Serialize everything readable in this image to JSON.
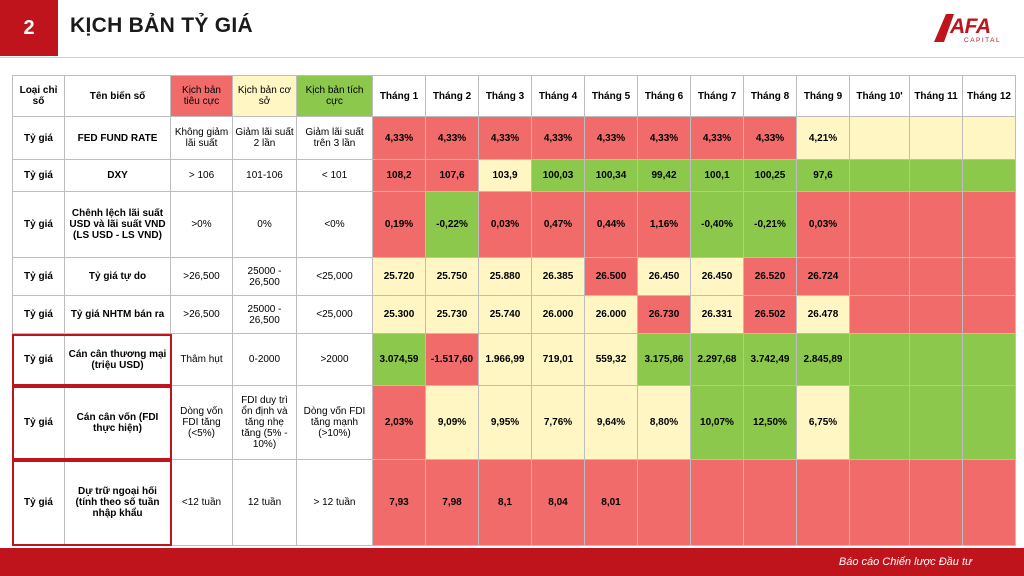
{
  "header": {
    "section_number": "2",
    "title": "KỊCH BẢN TỶ GIÁ",
    "logo_text": "AFA",
    "logo_sub": "CAPITAL"
  },
  "footer": {
    "text": "Báo cáo Chiến lược Đầu tư"
  },
  "table": {
    "headers": {
      "category": "Loại chỉ số",
      "name": "Tên biến số",
      "negative": "Kịch bản tiêu cực",
      "base": "Kịch bản cơ sở",
      "positive": "Kịch bản tích cực",
      "months": [
        "Tháng 1",
        "Tháng 2",
        "Tháng 3",
        "Tháng 4",
        "Tháng 5",
        "Tháng 6",
        "Tháng 7",
        "Tháng 8",
        "Tháng 9",
        "Tháng 10'",
        "Tháng 11",
        "Tháng 12"
      ]
    },
    "colors": {
      "red": "#f26b6b",
      "green": "#8cc84b",
      "yellow": "#fff6c4",
      "brand": "#c0141c"
    },
    "rows": [
      {
        "category": "Tỷ giá",
        "name": "FED FUND RATE",
        "negative": "Không giảm lãi suất",
        "base": "Giảm lãi suất 2 lần",
        "positive": "Giảm lãi suất trên 3 lần",
        "values": [
          "4,33%",
          "4,33%",
          "4,33%",
          "4,33%",
          "4,33%",
          "4,33%",
          "4,33%",
          "4,33%",
          "4,21%",
          "",
          "",
          ""
        ],
        "colors": [
          "r",
          "r",
          "r",
          "r",
          "r",
          "r",
          "r",
          "r",
          "y",
          "y",
          "y",
          "y"
        ]
      },
      {
        "category": "Tỷ giá",
        "name": "DXY",
        "negative": "> 106",
        "base": "101-106",
        "positive": "< 101",
        "values": [
          "108,2",
          "107,6",
          "103,9",
          "100,03",
          "100,34",
          "99,42",
          "100,1",
          "100,25",
          "97,6",
          "",
          "",
          ""
        ],
        "colors": [
          "r",
          "r",
          "y",
          "g",
          "g",
          "g",
          "g",
          "g",
          "g",
          "g",
          "g",
          "g"
        ]
      },
      {
        "category": "Tỷ giá",
        "name": "Chênh lệch lãi suất USD và lãi suất VND (LS USD - LS VND)",
        "negative": ">0%",
        "base": "0%",
        "positive": "<0%",
        "values": [
          "0,19%",
          "-0,22%",
          "0,03%",
          "0,47%",
          "0,44%",
          "1,16%",
          "-0,40%",
          "-0,21%",
          "0,03%",
          "",
          "",
          ""
        ],
        "colors": [
          "r",
          "g",
          "r",
          "r",
          "r",
          "r",
          "g",
          "g",
          "r",
          "r",
          "r",
          "r"
        ]
      },
      {
        "category": "Tỷ giá",
        "name": "Tỷ giá tự do",
        "negative": ">26,500",
        "base": "25000 - 26,500",
        "positive": "<25,000",
        "values": [
          "25.720",
          "25.750",
          "25.880",
          "26.385",
          "26.500",
          "26.450",
          "26.450",
          "26.520",
          "26.724",
          "",
          "",
          ""
        ],
        "colors": [
          "y",
          "y",
          "y",
          "y",
          "r",
          "y",
          "y",
          "r",
          "r",
          "r",
          "r",
          "r"
        ]
      },
      {
        "category": "Tỷ giá",
        "name": "Tỷ giá NHTM bán ra",
        "negative": ">26,500",
        "base": "25000 - 26,500",
        "positive": "<25,000",
        "values": [
          "25.300",
          "25.730",
          "25.740",
          "26.000",
          "26.000",
          "26.730",
          "26.331",
          "26.502",
          "26.478",
          "",
          "",
          ""
        ],
        "colors": [
          "y",
          "y",
          "y",
          "y",
          "y",
          "r",
          "y",
          "r",
          "y",
          "r",
          "r",
          "r"
        ]
      },
      {
        "category": "Tỷ giá",
        "name": "Cán cân thương mại (triệu USD)",
        "negative": "Thâm hụt",
        "base": "0-2000",
        "positive": ">2000",
        "values": [
          "3.074,59",
          "-1.517,60",
          "1.966,99",
          "719,01",
          "559,32",
          "3.175,86",
          "2.297,68",
          "3.742,49",
          "2.845,89",
          "",
          "",
          ""
        ],
        "colors": [
          "g",
          "r",
          "y",
          "y",
          "y",
          "g",
          "g",
          "g",
          "g",
          "g",
          "g",
          "g"
        ]
      },
      {
        "category": "Tỷ giá",
        "name": "Cán cân vốn (FDI thực hiện)",
        "negative": "Dòng vốn FDI tăng (<5%)",
        "base": "FDI duy trì ổn định và tăng nhẹ tăng (5% - 10%)",
        "positive": "Dòng vốn FDI tăng mạnh (>10%)",
        "values": [
          "2,03%",
          "9,09%",
          "9,95%",
          "7,76%",
          "9,64%",
          "8,80%",
          "10,07%",
          "12,50%",
          "6,75%",
          "",
          "",
          ""
        ],
        "colors": [
          "r",
          "y",
          "y",
          "y",
          "y",
          "y",
          "g",
          "g",
          "y",
          "g",
          "g",
          "g"
        ]
      },
      {
        "category": "Tỷ giá",
        "name": "Dự trữ ngoại hối (tính theo số tuần nhập khẩu",
        "negative": "<12 tuần",
        "base": "12 tuần",
        "positive": "> 12 tuần",
        "values": [
          "7,93",
          "7,98",
          "8,1",
          "8,04",
          "8,01",
          "",
          "",
          "",
          "",
          "",
          "",
          ""
        ],
        "colors": [
          "r",
          "r",
          "r",
          "r",
          "r",
          "r",
          "r",
          "r",
          "r",
          "r",
          "r",
          "r"
        ]
      }
    ]
  }
}
